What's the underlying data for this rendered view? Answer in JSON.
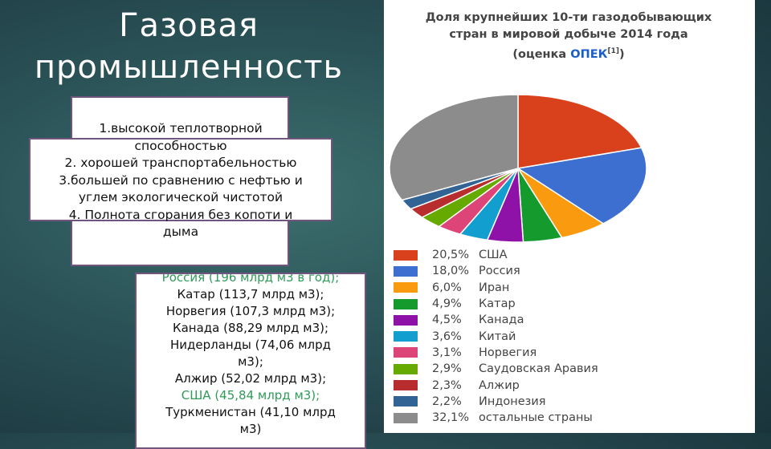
{
  "slide": {
    "title_line1": "Газовая",
    "title_line2": "промышленность"
  },
  "properties": [
    "1.высокой теплотворной",
    "способностью",
    "2. хорошей транспортабельностью",
    "3.большей по сравнению с нефтью и",
    "углем экологической чистотой",
    "4. Полнота сгорания без копоти и",
    "дыма"
  ],
  "producers": {
    "partial_top": "Россия (196 млрд м3 в год);",
    "lines": [
      {
        "text": "Катар (113,7 млрд м3);",
        "highlight": false
      },
      {
        "text": "Норвегия (107,3 млрд м3);",
        "highlight": false
      },
      {
        "text": "Канада (88,29 млрд м3);",
        "highlight": false
      },
      {
        "text": "Нидерланды (74,06 млрд",
        "highlight": false
      },
      {
        "text": "м3);",
        "highlight": false
      },
      {
        "text": "Алжир (52,02 млрд м3);",
        "highlight": false
      },
      {
        "text": "США (45,84 млрд м3);",
        "highlight": true
      },
      {
        "text": "Туркменистан (41,10 млрд",
        "highlight": false
      },
      {
        "text": "м3)",
        "highlight": false
      }
    ],
    "highlight_color": "#2e9b57"
  },
  "chart_data": {
    "type": "pie",
    "title_line1": "Доля крупнейших 10-ти газодобывающих",
    "title_line2": "стран в мировой добыче 2014 года",
    "title_line3_prefix": "(оценка ",
    "title_line3_link": "ОПЕК",
    "title_line3_ref": "[1]",
    "title_line3_suffix": ")",
    "legend_placement": "bottom",
    "slices": [
      {
        "label": "США",
        "value": 20.5,
        "pct_text": "20,5%",
        "color": "#d9401c"
      },
      {
        "label": "Россия",
        "value": 18.0,
        "pct_text": "18,0%",
        "color": "#3c6fd0"
      },
      {
        "label": "Иран",
        "value": 6.0,
        "pct_text": "6,0%",
        "color": "#fa9a0e"
      },
      {
        "label": "Катар",
        "value": 4.9,
        "pct_text": "4,9%",
        "color": "#159a2e"
      },
      {
        "label": "Канада",
        "value": 4.5,
        "pct_text": "4,5%",
        "color": "#8f12a8"
      },
      {
        "label": "Китай",
        "value": 3.6,
        "pct_text": "3,6%",
        "color": "#129ecf"
      },
      {
        "label": "Норвегия",
        "value": 3.1,
        "pct_text": "3,1%",
        "color": "#dd4477"
      },
      {
        "label": "Саудовская Аравия",
        "value": 2.9,
        "pct_text": "2,9%",
        "color": "#66aa00"
      },
      {
        "label": "Алжир",
        "value": 2.3,
        "pct_text": "2,3%",
        "color": "#b82e2e"
      },
      {
        "label": "Индонезия",
        "value": 2.2,
        "pct_text": "2,2%",
        "color": "#316395"
      },
      {
        "label": "остальные страны",
        "value": 32.1,
        "pct_text": "32,1%",
        "color": "#8c8c8c"
      }
    ]
  }
}
